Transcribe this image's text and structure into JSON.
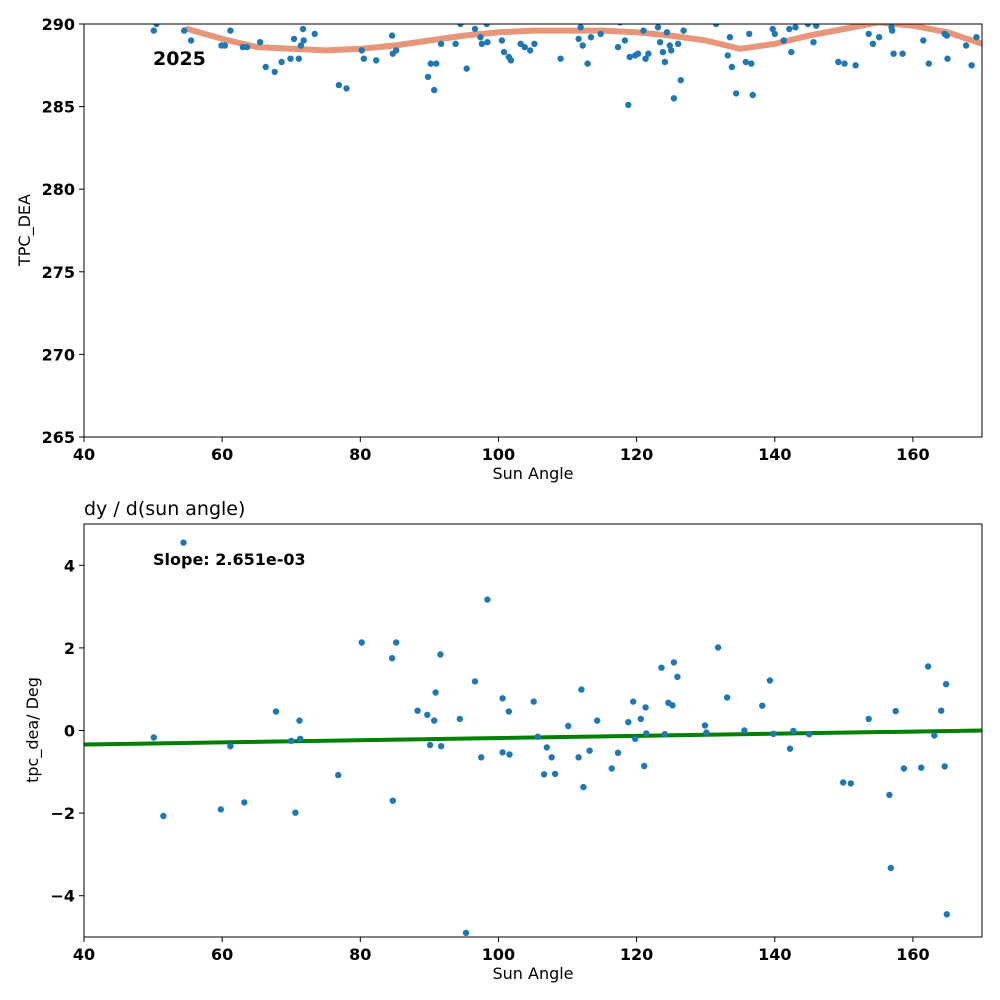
{
  "chart_data": [
    {
      "type": "scatter",
      "title": "",
      "annotation": "2025",
      "xlabel": "Sun Angle",
      "ylabel": "TPC_DEA",
      "xlim": [
        40,
        170
      ],
      "ylim": [
        265,
        290
      ],
      "xticks": [
        40,
        60,
        80,
        100,
        120,
        140,
        160
      ],
      "yticks": [
        265,
        270,
        275,
        280,
        285,
        290
      ],
      "grid": false,
      "colors": {
        "points": "#1f77b4",
        "smooth_line": "#e8967a"
      },
      "series": [
        {
          "kind": "scatter",
          "points": [
            [
              50.1,
              289.6
            ],
            [
              50.5,
              290.0
            ],
            [
              54.5,
              289.6
            ],
            [
              55.5,
              289.0
            ],
            [
              59.9,
              288.7
            ],
            [
              60.4,
              288.7
            ],
            [
              61.2,
              289.6
            ],
            [
              63.0,
              288.6
            ],
            [
              63.6,
              288.6
            ],
            [
              65.5,
              288.9
            ],
            [
              66.3,
              287.4
            ],
            [
              67.6,
              287.1
            ],
            [
              68.6,
              287.7
            ],
            [
              69.9,
              287.9
            ],
            [
              70.4,
              289.1
            ],
            [
              71.1,
              287.9
            ],
            [
              71.4,
              288.7
            ],
            [
              71.7,
              289.7
            ],
            [
              71.8,
              289.0
            ],
            [
              73.4,
              289.4
            ],
            [
              76.9,
              286.3
            ],
            [
              78.0,
              286.1
            ],
            [
              80.2,
              288.4
            ],
            [
              80.5,
              287.9
            ],
            [
              82.3,
              287.8
            ],
            [
              84.6,
              289.3
            ],
            [
              84.7,
              288.2
            ],
            [
              85.2,
              288.4
            ],
            [
              89.8,
              286.8
            ],
            [
              90.2,
              287.6
            ],
            [
              90.7,
              286.0
            ],
            [
              91.0,
              287.6
            ],
            [
              91.7,
              288.8
            ],
            [
              93.8,
              288.8
            ],
            [
              94.5,
              290.0
            ],
            [
              95.4,
              287.3
            ],
            [
              96.6,
              289.7
            ],
            [
              97.4,
              289.2
            ],
            [
              97.6,
              288.8
            ],
            [
              98.3,
              290.0
            ],
            [
              98.4,
              288.9
            ],
            [
              100.5,
              289.0
            ],
            [
              100.8,
              288.3
            ],
            [
              101.5,
              288.0
            ],
            [
              101.8,
              287.8
            ],
            [
              103.2,
              288.8
            ],
            [
              103.8,
              288.6
            ],
            [
              104.6,
              288.4
            ],
            [
              105.2,
              288.8
            ],
            [
              109.0,
              287.9
            ],
            [
              111.6,
              289.1
            ],
            [
              111.9,
              289.8
            ],
            [
              112.2,
              288.7
            ],
            [
              112.9,
              287.6
            ],
            [
              113.4,
              289.2
            ],
            [
              114.8,
              289.4
            ],
            [
              117.3,
              288.6
            ],
            [
              117.6,
              290.1
            ],
            [
              118.3,
              289.0
            ],
            [
              118.8,
              285.1
            ],
            [
              119.0,
              288.0
            ],
            [
              119.8,
              288.1
            ],
            [
              120.2,
              288.2
            ],
            [
              121.0,
              289.6
            ],
            [
              121.3,
              287.9
            ],
            [
              121.7,
              288.2
            ],
            [
              123.1,
              289.8
            ],
            [
              123.4,
              288.9
            ],
            [
              123.8,
              288.3
            ],
            [
              124.1,
              287.7
            ],
            [
              124.4,
              289.5
            ],
            [
              124.8,
              288.7
            ],
            [
              125.0,
              288.4
            ],
            [
              125.4,
              285.5
            ],
            [
              126.0,
              288.8
            ],
            [
              126.4,
              286.6
            ],
            [
              126.8,
              289.6
            ],
            [
              131.5,
              290.0
            ],
            [
              133.2,
              288.1
            ],
            [
              133.5,
              289.2
            ],
            [
              133.8,
              287.4
            ],
            [
              134.4,
              285.8
            ],
            [
              135.8,
              287.7
            ],
            [
              136.3,
              289.4
            ],
            [
              136.6,
              287.6
            ],
            [
              136.8,
              285.7
            ],
            [
              139.7,
              289.7
            ],
            [
              140.0,
              289.4
            ],
            [
              141.3,
              289.0
            ],
            [
              142.1,
              289.7
            ],
            [
              142.4,
              288.3
            ],
            [
              143.0,
              289.8
            ],
            [
              144.8,
              290.0
            ],
            [
              145.6,
              288.9
            ],
            [
              146.0,
              289.9
            ],
            [
              149.2,
              287.7
            ],
            [
              150.1,
              287.6
            ],
            [
              151.7,
              287.5
            ],
            [
              153.6,
              289.4
            ],
            [
              154.2,
              288.8
            ],
            [
              155.1,
              289.2
            ],
            [
              156.9,
              289.8
            ],
            [
              157.0,
              289.6
            ],
            [
              157.2,
              288.2
            ],
            [
              158.5,
              288.2
            ],
            [
              161.5,
              289.0
            ],
            [
              162.3,
              287.6
            ],
            [
              164.6,
              289.4
            ],
            [
              164.9,
              289.3
            ],
            [
              165.0,
              287.9
            ],
            [
              167.7,
              288.7
            ],
            [
              168.5,
              287.5
            ],
            [
              169.2,
              289.2
            ]
          ]
        },
        {
          "kind": "line",
          "points": [
            [
              55.0,
              289.7
            ],
            [
              60.0,
              289.1
            ],
            [
              65.0,
              288.6
            ],
            [
              70.0,
              288.5
            ],
            [
              75.0,
              288.4
            ],
            [
              80.0,
              288.5
            ],
            [
              85.0,
              288.7
            ],
            [
              90.0,
              289.0
            ],
            [
              95.0,
              289.3
            ],
            [
              100.0,
              289.5
            ],
            [
              105.0,
              289.6
            ],
            [
              110.0,
              289.6
            ],
            [
              115.0,
              289.6
            ],
            [
              120.0,
              289.5
            ],
            [
              125.0,
              289.3
            ],
            [
              130.0,
              289.0
            ],
            [
              135.0,
              288.5
            ],
            [
              140.0,
              288.8
            ],
            [
              145.0,
              289.3
            ],
            [
              150.0,
              289.7
            ],
            [
              155.0,
              290.1
            ],
            [
              160.0,
              289.9
            ],
            [
              165.0,
              289.5
            ],
            [
              170.0,
              288.8
            ]
          ]
        }
      ]
    },
    {
      "type": "scatter",
      "title": "dy / d(sun angle)",
      "annotation": "Slope: 2.651e-03",
      "xlabel": "Sun Angle",
      "ylabel": "tpc_dea/ Deg",
      "xlim": [
        40,
        170
      ],
      "ylim": [
        -5,
        5
      ],
      "xticks": [
        40,
        60,
        80,
        100,
        120,
        140,
        160
      ],
      "yticks": [
        -4,
        -2,
        0,
        2,
        4
      ],
      "ytick_labels": [
        "−4",
        "−2",
        "0",
        "2",
        "4"
      ],
      "grid": false,
      "colors": {
        "points": "#1f77b4",
        "fit_line": "#008000"
      },
      "series": [
        {
          "kind": "scatter",
          "points": [
            [
              50.1,
              -0.17
            ],
            [
              51.5,
              -2.07
            ],
            [
              54.4,
              4.55
            ],
            [
              59.8,
              -1.91
            ],
            [
              61.2,
              -0.38
            ],
            [
              63.2,
              -1.74
            ],
            [
              67.8,
              0.46
            ],
            [
              70.0,
              -0.25
            ],
            [
              70.6,
              -1.99
            ],
            [
              71.2,
              0.24
            ],
            [
              71.3,
              -0.2
            ],
            [
              76.8,
              -1.08
            ],
            [
              80.2,
              2.13
            ],
            [
              84.6,
              1.75
            ],
            [
              84.7,
              -1.7
            ],
            [
              85.2,
              2.13
            ],
            [
              88.3,
              0.48
            ],
            [
              89.7,
              0.38
            ],
            [
              90.1,
              -0.35
            ],
            [
              90.7,
              0.24
            ],
            [
              90.9,
              0.92
            ],
            [
              91.6,
              1.84
            ],
            [
              91.7,
              -0.38
            ],
            [
              94.4,
              0.28
            ],
            [
              95.3,
              -4.9
            ],
            [
              96.6,
              1.19
            ],
            [
              97.5,
              -0.65
            ],
            [
              98.4,
              3.17
            ],
            [
              100.6,
              0.78
            ],
            [
              100.6,
              -0.53
            ],
            [
              101.5,
              0.46
            ],
            [
              101.6,
              -0.58
            ],
            [
              105.1,
              0.7
            ],
            [
              105.7,
              -0.15
            ],
            [
              106.6,
              -1.06
            ],
            [
              107.0,
              -0.41
            ],
            [
              107.7,
              -0.65
            ],
            [
              108.2,
              -1.05
            ],
            [
              110.1,
              0.11
            ],
            [
              111.6,
              -0.65
            ],
            [
              112.0,
              0.99
            ],
            [
              112.3,
              -1.37
            ],
            [
              113.2,
              -0.49
            ],
            [
              114.3,
              0.24
            ],
            [
              116.4,
              -0.92
            ],
            [
              117.3,
              -0.54
            ],
            [
              118.8,
              0.2
            ],
            [
              119.5,
              0.7
            ],
            [
              119.8,
              -0.2
            ],
            [
              120.6,
              0.28
            ],
            [
              121.1,
              -0.86
            ],
            [
              121.3,
              0.56
            ],
            [
              121.4,
              -0.07
            ],
            [
              123.6,
              1.52
            ],
            [
              124.1,
              -0.09
            ],
            [
              124.6,
              0.67
            ],
            [
              125.2,
              0.61
            ],
            [
              125.4,
              1.65
            ],
            [
              125.9,
              1.3
            ],
            [
              129.9,
              0.12
            ],
            [
              130.1,
              -0.05
            ],
            [
              131.8,
              2.01
            ],
            [
              133.1,
              0.8
            ],
            [
              135.6,
              0.0
            ],
            [
              138.2,
              0.6
            ],
            [
              139.3,
              1.21
            ],
            [
              139.8,
              -0.08
            ],
            [
              142.2,
              -0.44
            ],
            [
              142.7,
              -0.01
            ],
            [
              145.0,
              -0.09
            ],
            [
              149.9,
              -1.26
            ],
            [
              151.0,
              -1.28
            ],
            [
              153.6,
              0.28
            ],
            [
              156.6,
              -1.56
            ],
            [
              156.8,
              -3.33
            ],
            [
              157.5,
              0.47
            ],
            [
              158.7,
              -0.92
            ],
            [
              161.2,
              -0.9
            ],
            [
              162.2,
              1.55
            ],
            [
              163.1,
              -0.12
            ],
            [
              164.1,
              0.48
            ],
            [
              164.6,
              -0.87
            ],
            [
              164.8,
              1.12
            ],
            [
              164.9,
              -4.45
            ]
          ]
        },
        {
          "kind": "line",
          "points": [
            [
              40,
              -0.34
            ],
            [
              170,
              0.0
            ]
          ]
        }
      ]
    }
  ]
}
